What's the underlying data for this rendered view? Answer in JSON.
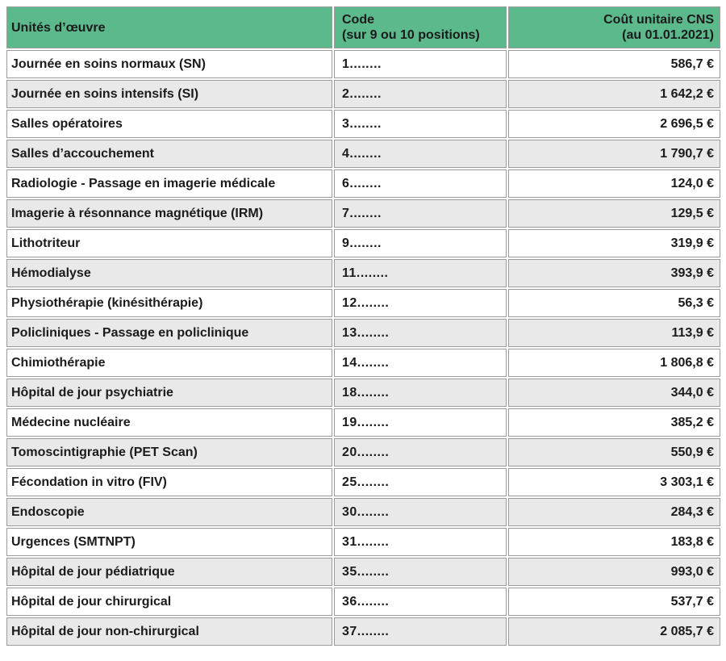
{
  "colors": {
    "header_bg": "#5cb98c",
    "row_alt_bg": "#e9e9e9",
    "border": "#9b9b9b",
    "text": "#1b1b1b"
  },
  "table": {
    "columns": [
      {
        "label": "Unités d’œuvre",
        "sublabel": "",
        "align": "left"
      },
      {
        "label": "Code",
        "sublabel": "(sur 9 ou 10 positions)",
        "align": "left"
      },
      {
        "label": "Coût unitaire CNS",
        "sublabel": "(au 01.01.2021)",
        "align": "right"
      }
    ],
    "rows": [
      {
        "label": "Journée en soins normaux (SN)",
        "code": "1........",
        "cost": "586,7 €"
      },
      {
        "label": "Journée en soins intensifs (SI)",
        "code": "2........",
        "cost": "1 642,2 €"
      },
      {
        "label": "Salles opératoires",
        "code": "3........",
        "cost": "2 696,5 €"
      },
      {
        "label": "Salles d’accouchement",
        "code": "4........",
        "cost": "1 790,7 €"
      },
      {
        "label": "Radiologie - Passage en imagerie médicale",
        "code": "6........",
        "cost": "124,0 €"
      },
      {
        "label": "Imagerie à résonnance magnétique (IRM)",
        "code": "7........",
        "cost": "129,5 €"
      },
      {
        "label": "Lithotriteur",
        "code": "9........",
        "cost": "319,9 €"
      },
      {
        "label": "Hémodialyse",
        "code": "11........",
        "cost": "393,9 €"
      },
      {
        "label": "Physiothérapie (kinésithérapie)",
        "code": "12........",
        "cost": "56,3 €"
      },
      {
        "label": "Policliniques - Passage en policlinique",
        "code": "13........",
        "cost": "113,9 €"
      },
      {
        "label": "Chimiothérapie",
        "code": "14........",
        "cost": "1 806,8 €"
      },
      {
        "label": "Hôpital de jour psychiatrie",
        "code": "18........",
        "cost": "344,0 €"
      },
      {
        "label": "Médecine nucléaire",
        "code": "19........",
        "cost": "385,2 €"
      },
      {
        "label": "Tomoscintigraphie (PET Scan)",
        "code": "20........",
        "cost": "550,9 €"
      },
      {
        "label": "Fécondation in vitro (FIV)",
        "code": "25........",
        "cost": "3 303,1 €"
      },
      {
        "label": "Endoscopie",
        "code": "30........",
        "cost": "284,3 €"
      },
      {
        "label": "Urgences (SMTNPT)",
        "code": "31........",
        "cost": "183,8 €"
      },
      {
        "label": "Hôpital de jour pédiatrique",
        "code": "35........",
        "cost": "993,0 €"
      },
      {
        "label": "Hôpital de jour chirurgical",
        "code": "36........",
        "cost": "537,7 €"
      },
      {
        "label": "Hôpital de jour non-chirurgical",
        "code": "37........",
        "cost": "2 085,7 €"
      }
    ]
  }
}
